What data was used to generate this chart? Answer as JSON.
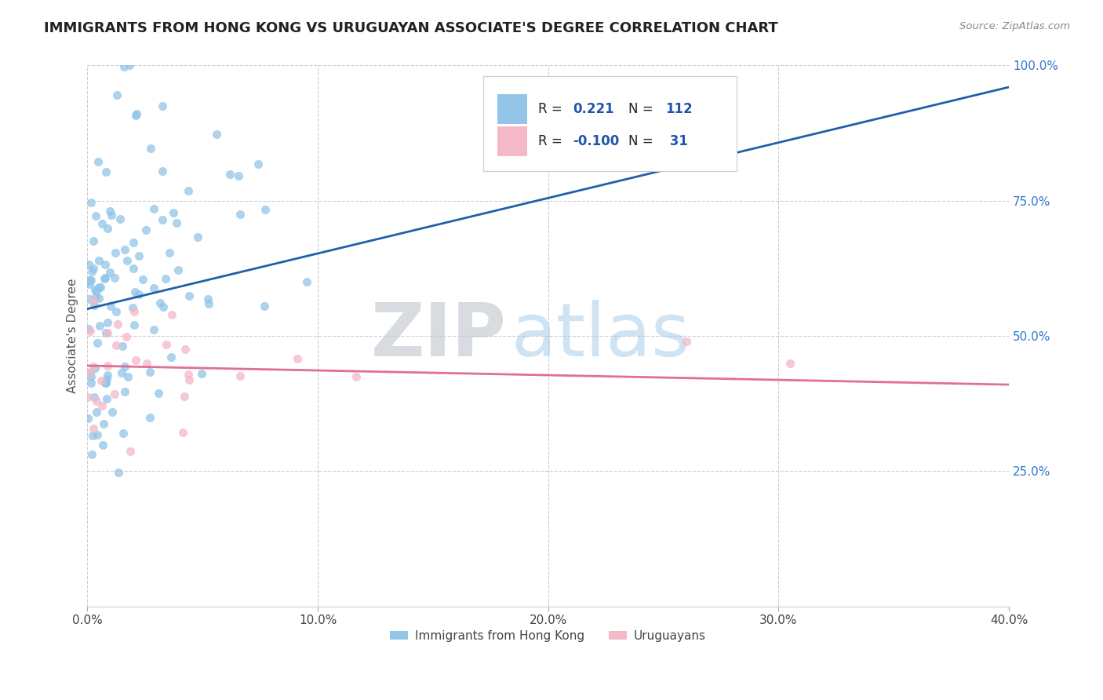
{
  "title": "IMMIGRANTS FROM HONG KONG VS URUGUAYAN ASSOCIATE'S DEGREE CORRELATION CHART",
  "source_text": "Source: ZipAtlas.com",
  "ylabel": "Associate's Degree",
  "xlim": [
    0.0,
    40.0
  ],
  "ylim": [
    0.0,
    100.0
  ],
  "xtick_labels": [
    "0.0%",
    "10.0%",
    "20.0%",
    "30.0%",
    "40.0%"
  ],
  "xtick_values": [
    0,
    10,
    20,
    30,
    40
  ],
  "ytick_labels": [
    "25.0%",
    "50.0%",
    "75.0%",
    "100.0%"
  ],
  "ytick_values": [
    25,
    50,
    75,
    100
  ],
  "blue_color": "#92c5e8",
  "pink_color": "#f5b8c8",
  "blue_line_color": "#2060aa",
  "pink_line_color": "#e07090",
  "R_blue": 0.221,
  "N_blue": 112,
  "R_pink": -0.1,
  "N_pink": 31,
  "legend_label_blue": "Immigrants from Hong Kong",
  "legend_label_pink": "Uruguayans",
  "background_color": "#ffffff",
  "title_color": "#222222",
  "title_fontsize": 13,
  "axis_label_color": "#555555",
  "grid_color": "#cccccc",
  "grid_linestyle": "--",
  "blue_scatter_seed": 42,
  "pink_scatter_seed": 99,
  "blue_line_y0": 55.0,
  "blue_line_y1": 96.0,
  "pink_line_y0": 44.5,
  "pink_line_y1": 41.0,
  "ytick_color": "#3377cc",
  "source_color": "#888888",
  "legend_R_N_color": "#2255aa"
}
